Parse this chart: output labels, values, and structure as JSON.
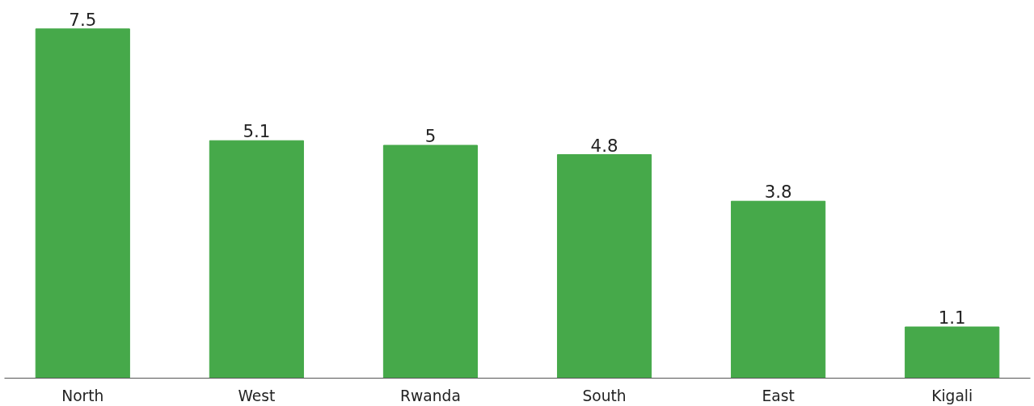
{
  "chart_data": {
    "type": "bar",
    "categories": [
      "North",
      "West",
      "Rwanda",
      "South",
      "East",
      "Kigali"
    ],
    "values": [
      7.5,
      5.1,
      5,
      4.8,
      3.8,
      1.1
    ],
    "color": "#46a94a",
    "data_labels": true,
    "tick_labels": "x"
  }
}
